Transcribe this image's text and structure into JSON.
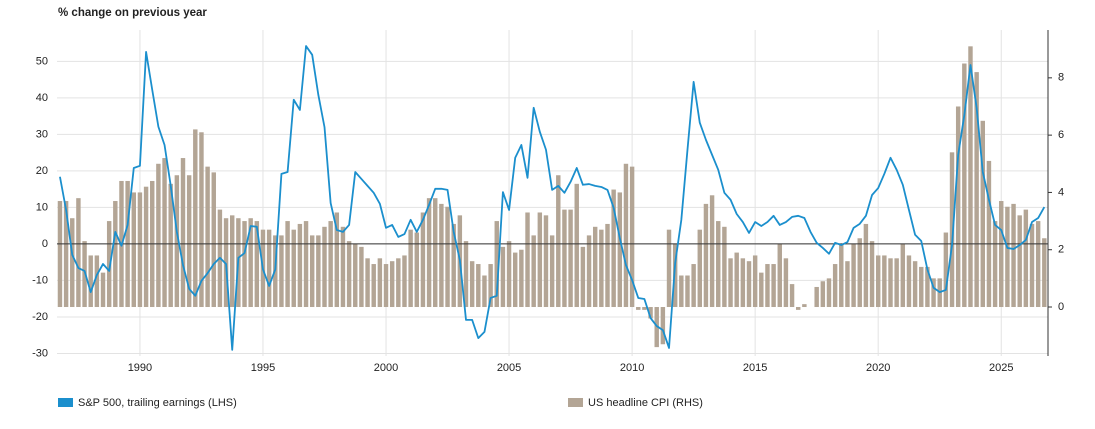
{
  "chart_data": {
    "type": "bar",
    "title": "% change on previous year",
    "x": [
      1986.75,
      1987,
      1987.25,
      1987.5,
      1987.75,
      1988,
      1988.25,
      1988.5,
      1988.75,
      1989,
      1989.25,
      1989.5,
      1989.75,
      1990,
      1990.25,
      1990.5,
      1990.75,
      1991,
      1991.25,
      1991.5,
      1991.75,
      1992,
      1992.25,
      1992.5,
      1992.75,
      1993,
      1993.25,
      1993.5,
      1993.75,
      1994,
      1994.25,
      1994.5,
      1994.75,
      1995,
      1995.25,
      1995.5,
      1995.75,
      1996,
      1996.25,
      1996.5,
      1996.75,
      1997,
      1997.25,
      1997.5,
      1997.75,
      1998,
      1998.25,
      1998.5,
      1998.75,
      1999,
      1999.25,
      1999.5,
      1999.75,
      2000,
      2000.25,
      2000.5,
      2000.75,
      2001,
      2001.25,
      2001.5,
      2001.75,
      2002,
      2002.25,
      2002.5,
      2002.75,
      2003,
      2003.25,
      2003.5,
      2003.75,
      2004,
      2004.25,
      2004.5,
      2004.75,
      2005,
      2005.25,
      2005.5,
      2005.75,
      2006,
      2006.25,
      2006.5,
      2006.75,
      2007,
      2007.25,
      2007.5,
      2007.75,
      2008,
      2008.25,
      2008.5,
      2008.75,
      2009,
      2009.25,
      2009.5,
      2009.75,
      2010,
      2010.25,
      2010.5,
      2010.75,
      2011,
      2011.25,
      2011.5,
      2011.75,
      2012,
      2012.25,
      2012.5,
      2012.75,
      2013,
      2013.25,
      2013.5,
      2013.75,
      2014,
      2014.25,
      2014.5,
      2014.75,
      2015,
      2015.25,
      2015.5,
      2015.75,
      2016,
      2016.25,
      2016.5,
      2016.75,
      2017,
      2017.25,
      2017.5,
      2017.75,
      2018,
      2018.25,
      2018.5,
      2018.75,
      2019,
      2019.25,
      2019.5,
      2019.75,
      2020,
      2020.25,
      2020.5,
      2020.75,
      2021,
      2021.25,
      2021.5,
      2021.75,
      2022,
      2022.25,
      2022.5,
      2022.75,
      2023,
      2023.25,
      2023.5,
      2023.75,
      2024,
      2024.25,
      2024.5,
      2024.75,
      2025,
      2025.25,
      2025.5,
      2025.75,
      2026,
      2026.25,
      2026.5,
      2026.75
    ],
    "xlim": [
      1986.63,
      2026.9
    ],
    "xticks": [
      1990,
      1995,
      2000,
      2005,
      2010,
      2015,
      2020,
      2025
    ],
    "ylim": [
      -30.7,
      58.6
    ],
    "yticks": [
      -30,
      -20,
      -10,
      0,
      10,
      20,
      30,
      40,
      50
    ],
    "y2lim": [
      -1.71,
      9.67
    ],
    "y2ticks": [
      0,
      2,
      4,
      6,
      8
    ],
    "grid": true,
    "legend": "bottom",
    "series": [
      {
        "name": "S&P 500, trailing earnings (LHS)",
        "type": "line",
        "axis": "y",
        "color": "#1b8fcd",
        "values": [
          18.4,
          9.3,
          -3,
          -6.6,
          -7.4,
          -13.2,
          -8.5,
          -5.5,
          -7.4,
          3.3,
          -0.5,
          5.2,
          20.8,
          21.4,
          52.6,
          42.2,
          32.1,
          27.1,
          16,
          3.3,
          -5.8,
          -12.3,
          -14.2,
          -10.1,
          -8,
          -5.5,
          -3.8,
          -5.5,
          -29,
          -3.8,
          -2.5,
          4.9,
          4.7,
          -7,
          -11.5,
          -7,
          19.2,
          19.7,
          39.5,
          36.7,
          54.2,
          51.8,
          40.8,
          32,
          11.2,
          3.8,
          3.3,
          5.2,
          19.7,
          17.8,
          15.9,
          14,
          11,
          4.4,
          5.2,
          1.9,
          2.7,
          6.6,
          3.3,
          6.6,
          10.7,
          15.1,
          15.1,
          14.8,
          3.3,
          -4.4,
          -20.8,
          -20.8,
          -25.8,
          -24.1,
          -14.8,
          -14.2,
          14.2,
          9.3,
          23.6,
          27.1,
          18.1,
          37.3,
          30.7,
          25.8,
          14.8,
          15.9,
          14,
          17,
          20.8,
          16.2,
          16.4,
          15.9,
          15.6,
          14.8,
          9.9,
          1.6,
          -5.8,
          -9.9,
          -14.8,
          -15.1,
          -20.3,
          -22.5,
          -23.6,
          -28.5,
          -5.2,
          6.6,
          25.8,
          44.4,
          33.2,
          28.5,
          24.4,
          20.3,
          14,
          12.1,
          8.2,
          6,
          3,
          6,
          4.9,
          6,
          7.7,
          5.2,
          6,
          7.4,
          7.7,
          7.1,
          3.3,
          0.3,
          -1.1,
          -2.7,
          0.3,
          -0.3,
          0.5,
          4.4,
          5.5,
          7.7,
          13.4,
          15.3,
          19.2,
          23.6,
          20.3,
          16.2,
          9.3,
          2.5,
          0.8,
          -7,
          -12,
          -13.2,
          -12.6,
          -0.3,
          24.4,
          35.3,
          49,
          37.3,
          19.7,
          12.1,
          5.2,
          3.8,
          -1.1,
          -1.4,
          -0.3,
          1.1,
          6,
          7.1,
          10.1
        ]
      },
      {
        "name": "US headline CPI (RHS)",
        "type": "bar",
        "axis": "y2",
        "color": "#b3a595",
        "values": [
          3.7,
          3.7,
          3.1,
          3.8,
          2.3,
          1.8,
          1.8,
          1.2,
          3.0,
          3.7,
          4.4,
          4.4,
          4.0,
          4.0,
          4.2,
          4.4,
          5.0,
          5.2,
          4.3,
          4.6,
          5.2,
          4.6,
          6.2,
          6.1,
          4.9,
          4.7,
          3.4,
          3.1,
          3.2,
          3.1,
          3.0,
          3.1,
          3.0,
          2.7,
          2.7,
          2.5,
          2.5,
          3.0,
          2.7,
          2.9,
          3.0,
          2.5,
          2.5,
          2.8,
          3.0,
          3.3,
          2.8,
          2.3,
          2.2,
          2.1,
          1.7,
          1.5,
          1.7,
          1.5,
          1.6,
          1.7,
          1.8,
          2.7,
          2.6,
          3.3,
          3.8,
          3.8,
          3.6,
          3.5,
          2.9,
          3.2,
          2.3,
          1.6,
          1.5,
          1.1,
          1.5,
          3.0,
          2.1,
          2.3,
          1.9,
          2.0,
          3.3,
          2.5,
          3.3,
          3.2,
          2.5,
          4.6,
          3.4,
          3.4,
          4.3,
          2.1,
          2.5,
          2.8,
          2.7,
          2.9,
          4.1,
          4.0,
          5.0,
          4.9,
          -0.1,
          -0.1,
          -0.4,
          -1.4,
          -1.3,
          2.7,
          2.2,
          1.1,
          1.1,
          1.5,
          2.7,
          3.6,
          3.9,
          3.0,
          2.8,
          1.7,
          1.9,
          1.7,
          1.6,
          1.8,
          1.2,
          1.5,
          1.5,
          2.2,
          1.7,
          0.8,
          -0.1,
          0.1,
          0.0,
          0.7,
          0.9,
          1.0,
          1.5,
          2.2,
          1.6,
          2.2,
          2.4,
          2.9,
          2.3,
          1.8,
          1.8,
          1.7,
          1.7,
          2.2,
          1.8,
          1.6,
          1.4,
          1.4,
          1.0,
          1.0,
          2.6,
          5.4,
          7.0,
          8.5,
          9.1,
          8.2,
          6.5,
          5.1,
          3.0,
          3.7,
          3.5,
          3.6,
          3.2,
          3.4,
          2.9,
          3.0,
          2.4
        ]
      }
    ]
  }
}
